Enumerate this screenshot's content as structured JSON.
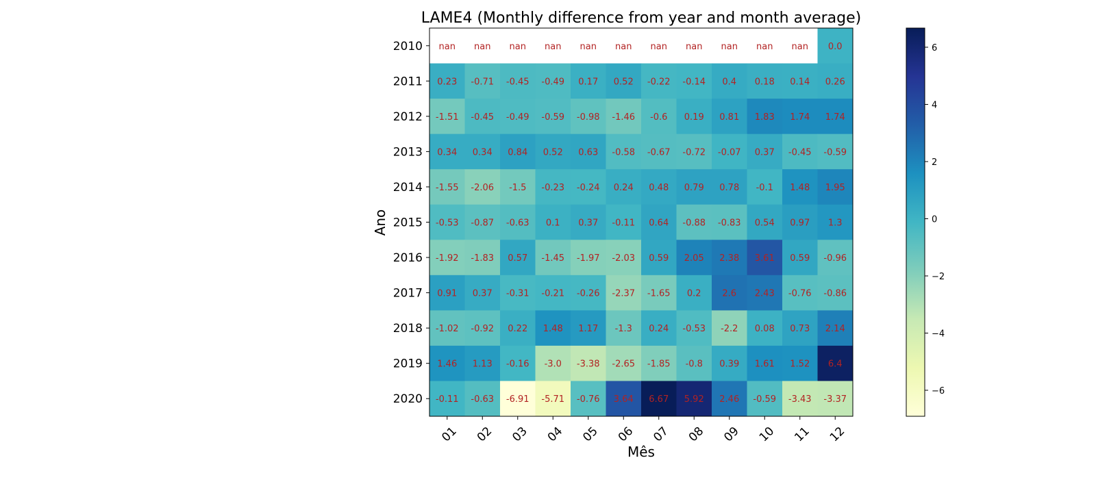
{
  "chart_data": {
    "type": "heatmap",
    "title": "LAME4 (Monthly difference from year and month average)",
    "xlabel": "Mês",
    "ylabel": "Ano",
    "x_categories": [
      "01",
      "02",
      "03",
      "04",
      "05",
      "06",
      "07",
      "08",
      "09",
      "10",
      "11",
      "12"
    ],
    "y_categories": [
      "2010",
      "2011",
      "2012",
      "2013",
      "2014",
      "2015",
      "2016",
      "2017",
      "2018",
      "2019",
      "2020"
    ],
    "values": [
      [
        null,
        null,
        null,
        null,
        null,
        null,
        null,
        null,
        null,
        null,
        null,
        0.0
      ],
      [
        0.23,
        -0.71,
        -0.45,
        -0.49,
        0.17,
        0.52,
        -0.22,
        -0.14,
        0.4,
        0.18,
        0.14,
        0.26
      ],
      [
        -1.51,
        -0.45,
        -0.49,
        -0.59,
        -0.98,
        -1.46,
        -0.6,
        0.19,
        0.81,
        1.83,
        1.74,
        1.74
      ],
      [
        0.34,
        0.34,
        0.84,
        0.52,
        0.63,
        -0.58,
        -0.67,
        -0.72,
        -0.07,
        0.37,
        -0.45,
        -0.59
      ],
      [
        -1.55,
        -2.06,
        -1.5,
        -0.23,
        -0.24,
        0.24,
        0.48,
        0.79,
        0.78,
        -0.1,
        1.48,
        1.95
      ],
      [
        -0.53,
        -0.87,
        -0.63,
        0.1,
        0.37,
        -0.11,
        0.64,
        -0.88,
        -0.83,
        0.54,
        0.97,
        1.3
      ],
      [
        -1.92,
        -1.83,
        0.57,
        -1.45,
        -1.97,
        -2.03,
        0.59,
        2.05,
        2.38,
        3.61,
        0.59,
        -0.96
      ],
      [
        0.91,
        0.37,
        -0.31,
        -0.21,
        -0.26,
        -2.37,
        -1.65,
        0.2,
        2.6,
        2.43,
        -0.76,
        -0.86
      ],
      [
        -1.02,
        -0.92,
        0.22,
        1.48,
        1.17,
        -1.3,
        0.24,
        -0.53,
        -2.2,
        0.08,
        0.73,
        2.14
      ],
      [
        1.46,
        1.13,
        -0.16,
        -3.0,
        -3.38,
        -2.65,
        -1.85,
        -0.8,
        0.39,
        1.61,
        1.52,
        6.4
      ],
      [
        -0.11,
        -0.63,
        -6.91,
        -5.71,
        -0.76,
        3.64,
        6.67,
        5.92,
        2.46,
        -0.59,
        -3.43,
        -3.37
      ]
    ],
    "cell_labels": [
      [
        "nan",
        "nan",
        "nan",
        "nan",
        "nan",
        "nan",
        "nan",
        "nan",
        "nan",
        "nan",
        "nan",
        "0.0"
      ],
      [
        "0.23",
        "-0.71",
        "-0.45",
        "-0.49",
        "0.17",
        "0.52",
        "-0.22",
        "-0.14",
        "0.4",
        "0.18",
        "0.14",
        "0.26"
      ],
      [
        "-1.51",
        "-0.45",
        "-0.49",
        "-0.59",
        "-0.98",
        "-1.46",
        "-0.6",
        "0.19",
        "0.81",
        "1.83",
        "1.74",
        "1.74"
      ],
      [
        "0.34",
        "0.34",
        "0.84",
        "0.52",
        "0.63",
        "-0.58",
        "-0.67",
        "-0.72",
        "-0.07",
        "0.37",
        "-0.45",
        "-0.59"
      ],
      [
        "-1.55",
        "-2.06",
        "-1.5",
        "-0.23",
        "-0.24",
        "0.24",
        "0.48",
        "0.79",
        "0.78",
        "-0.1",
        "1.48",
        "1.95"
      ],
      [
        "-0.53",
        "-0.87",
        "-0.63",
        "0.1",
        "0.37",
        "-0.11",
        "0.64",
        "-0.88",
        "-0.83",
        "0.54",
        "0.97",
        "1.3"
      ],
      [
        "-1.92",
        "-1.83",
        "0.57",
        "-1.45",
        "-1.97",
        "-2.03",
        "0.59",
        "2.05",
        "2.38",
        "3.61",
        "0.59",
        "-0.96"
      ],
      [
        "0.91",
        "0.37",
        "-0.31",
        "-0.21",
        "-0.26",
        "-2.37",
        "-1.65",
        "0.2",
        "2.6",
        "2.43",
        "-0.76",
        "-0.86"
      ],
      [
        "-1.02",
        "-0.92",
        "0.22",
        "1.48",
        "1.17",
        "-1.3",
        "0.24",
        "-0.53",
        "-2.2",
        "0.08",
        "0.73",
        "2.14"
      ],
      [
        "1.46",
        "1.13",
        "-0.16",
        "-3.0",
        "-3.38",
        "-2.65",
        "-1.85",
        "-0.8",
        "0.39",
        "1.61",
        "1.52",
        "6.4"
      ],
      [
        "-0.11",
        "-0.63",
        "-6.91",
        "-5.71",
        "-0.76",
        "3.64",
        "6.67",
        "5.92",
        "2.46",
        "-0.59",
        "-3.43",
        "-3.37"
      ]
    ],
    "colorbar": {
      "vmin": -6.91,
      "vmax": 6.67,
      "ticks": [
        6,
        4,
        2,
        0,
        -2,
        -4,
        -6
      ],
      "tick_labels": [
        "6",
        "4",
        "2",
        "0",
        "−2",
        "−4",
        "−6"
      ],
      "colormap": "YlGnBu"
    },
    "cell_label_color": "#b22222",
    "nan_color": "#ffffff",
    "grid": false
  }
}
